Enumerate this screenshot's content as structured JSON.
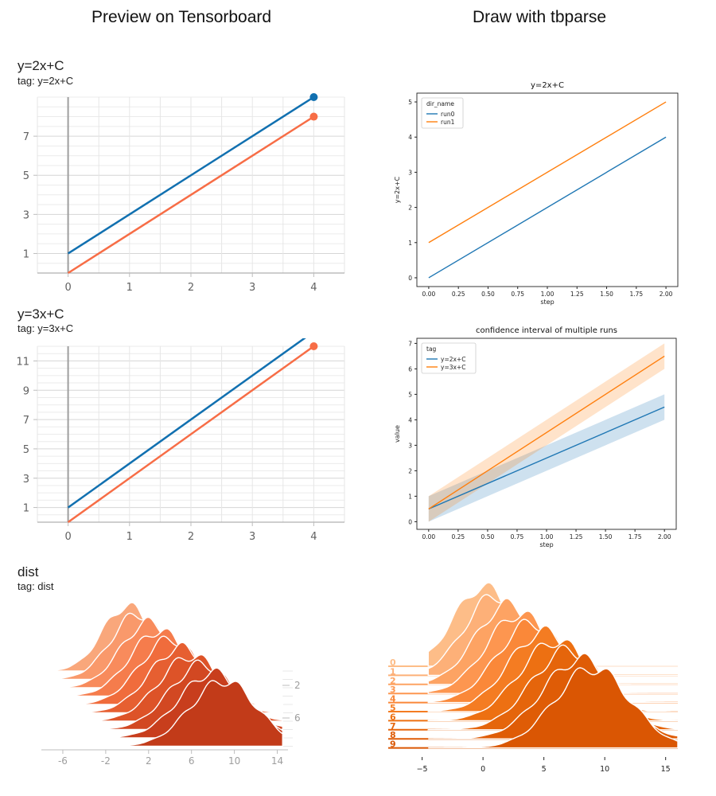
{
  "headings": {
    "left": "Preview on Tensorboard",
    "right": "Draw with tbparse"
  },
  "tb_scalar_1": {
    "title": "y=2x+C",
    "tag": "tag: y=2x+C"
  },
  "tb_scalar_2": {
    "title": "y=3x+C",
    "tag": "tag: y=3x+C"
  },
  "tb_dist": {
    "title": "dist",
    "tag": "tag: dist"
  },
  "colors": {
    "tb_blue": "#1170b0",
    "tb_orange": "#f76d46",
    "mpl_blue": "#1f77b4",
    "mpl_orange": "#ff7f0e"
  },
  "chart_data": [
    {
      "id": "tb_scalar_1",
      "type": "line",
      "y_ticks": [
        1,
        3,
        5,
        7
      ],
      "x_ticks": [
        0,
        1,
        2,
        3,
        4
      ],
      "xlim": [
        -0.5,
        4.5
      ],
      "ylim": [
        0,
        9
      ],
      "series": [
        {
          "x": [
            0,
            4
          ],
          "y": [
            1,
            9
          ],
          "color": "#1170b0"
        },
        {
          "x": [
            0,
            4
          ],
          "y": [
            0,
            8
          ],
          "color": "#f76d46"
        }
      ]
    },
    {
      "id": "tbparse_scalar_1",
      "type": "line",
      "title": "y=2x+C",
      "xlabel": "step",
      "ylabel": "y=2x+C",
      "legend_title": "dir_name",
      "legend_position": "top-left",
      "x_ticks": [
        "0.00",
        "0.25",
        "0.50",
        "0.75",
        "1.00",
        "1.25",
        "1.50",
        "1.75",
        "2.00"
      ],
      "y_ticks": [
        0,
        1,
        2,
        3,
        4,
        5
      ],
      "xlim": [
        -0.1,
        2.1
      ],
      "ylim": [
        -0.25,
        5.25
      ],
      "series": [
        {
          "name": "run0",
          "x": [
            0,
            2
          ],
          "y": [
            0,
            4
          ],
          "color": "#1f77b4"
        },
        {
          "name": "run1",
          "x": [
            0,
            2
          ],
          "y": [
            1,
            5
          ],
          "color": "#ff7f0e"
        }
      ]
    },
    {
      "id": "tb_scalar_2",
      "type": "line",
      "y_ticks": [
        1,
        3,
        5,
        7,
        9,
        11
      ],
      "x_ticks": [
        0,
        1,
        2,
        3,
        4
      ],
      "xlim": [
        -0.5,
        4.5
      ],
      "ylim": [
        0,
        12
      ],
      "series": [
        {
          "x": [
            0,
            4
          ],
          "y": [
            1,
            13
          ],
          "color": "#1170b0"
        },
        {
          "x": [
            0,
            4
          ],
          "y": [
            0,
            12
          ],
          "color": "#f76d46"
        }
      ]
    },
    {
      "id": "tbparse_ci",
      "type": "line",
      "title": "confidence interval of multiple runs",
      "xlabel": "step",
      "ylabel": "value",
      "legend_title": "tag",
      "legend_position": "top-left",
      "x_ticks": [
        "0.00",
        "0.25",
        "0.50",
        "0.75",
        "1.00",
        "1.25",
        "1.50",
        "1.75",
        "2.00"
      ],
      "y_ticks": [
        0,
        1,
        2,
        3,
        4,
        5,
        6,
        7
      ],
      "xlim": [
        -0.1,
        2.1
      ],
      "ylim": [
        -0.3,
        7.2
      ],
      "series": [
        {
          "name": "y=2x+C",
          "x": [
            0,
            2
          ],
          "y": [
            0.5,
            4.5
          ],
          "lower": [
            0,
            4
          ],
          "upper": [
            1,
            5
          ],
          "color": "#1f77b4"
        },
        {
          "name": "y=3x+C",
          "x": [
            0,
            2
          ],
          "y": [
            0.5,
            6.5
          ],
          "lower": [
            0,
            6
          ],
          "upper": [
            1,
            7
          ],
          "color": "#ff7f0e"
        }
      ]
    },
    {
      "id": "tb_dist",
      "type": "area",
      "subtype": "ridgeline",
      "x_ticks": [
        "-6",
        "-2",
        "2",
        "6",
        "10",
        "14"
      ],
      "xlim": [
        -8,
        15
      ],
      "step_ticks": [
        "2",
        "6"
      ],
      "ridges": [
        {
          "center": 0,
          "sd": 2.3,
          "color": "#f9a77b"
        },
        {
          "center": 1,
          "sd": 2.5,
          "color": "#f9996b"
        },
        {
          "center": 2,
          "sd": 2.6,
          "color": "#f88b5c"
        },
        {
          "center": 3,
          "sd": 2.7,
          "color": "#f57c4c"
        },
        {
          "center": 4,
          "sd": 2.8,
          "color": "#f06c3c"
        },
        {
          "center": 5,
          "sd": 2.9,
          "color": "#e65f31"
        },
        {
          "center": 6,
          "sd": 3.0,
          "color": "#dd5328"
        },
        {
          "center": 7,
          "sd": 3.0,
          "color": "#d24822"
        },
        {
          "center": 8,
          "sd": 3.1,
          "color": "#c83e1d"
        },
        {
          "center": 9,
          "sd": 3.1,
          "color": "#c23b19"
        }
      ]
    },
    {
      "id": "tbparse_dist",
      "type": "area",
      "subtype": "ridgeline",
      "x_ticks": [
        "−5",
        "0",
        "5",
        "10",
        "15"
      ],
      "xlim": [
        -7,
        16
      ],
      "row_labels": [
        "0",
        "1",
        "2",
        "3",
        "4",
        "5",
        "6",
        "7",
        "8",
        "9"
      ],
      "ridges": [
        {
          "center": 0,
          "sd": 2.4,
          "color": "#fdbd88"
        },
        {
          "center": 1,
          "sd": 2.5,
          "color": "#fdb078"
        },
        {
          "center": 2,
          "sd": 2.6,
          "color": "#fda363"
        },
        {
          "center": 3,
          "sd": 2.7,
          "color": "#fd9650"
        },
        {
          "center": 4,
          "sd": 2.8,
          "color": "#fa8839"
        },
        {
          "center": 5,
          "sd": 2.9,
          "color": "#f47c22"
        },
        {
          "center": 6,
          "sd": 3.0,
          "color": "#ed7012"
        },
        {
          "center": 7,
          "sd": 3.0,
          "color": "#e5650b"
        },
        {
          "center": 8,
          "sd": 3.1,
          "color": "#df5c06"
        },
        {
          "center": 9,
          "sd": 3.1,
          "color": "#da5603"
        }
      ]
    }
  ]
}
